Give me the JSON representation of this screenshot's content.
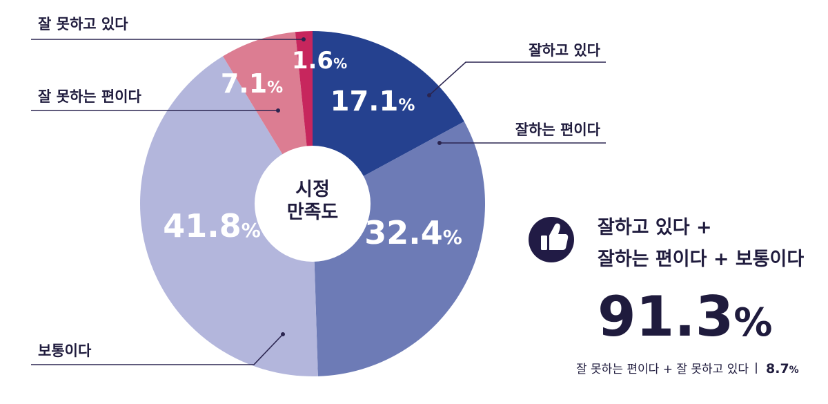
{
  "chart_data": {
    "type": "pie",
    "center_label": [
      "시정",
      "만족도"
    ],
    "series": [
      {
        "label": "잘하고 있다",
        "value": 17.1,
        "display": "17.1",
        "color": "#25418f"
      },
      {
        "label": "잘하는 편이다",
        "value": 32.4,
        "display": "32.4",
        "color": "#6d7bb6"
      },
      {
        "label": "보통이다",
        "value": 41.8,
        "display": "41.8",
        "color": "#b3b6dc"
      },
      {
        "label": "잘 못하는 편이다",
        "value": 7.1,
        "display": "7.1",
        "color": "#dc7d92"
      },
      {
        "label": "잘 못하고 있다",
        "value": 1.6,
        "display": "1.6",
        "color": "#c7265d"
      }
    ],
    "percent_symbol": "%"
  },
  "summary": {
    "line1": "잘하고 있다 +",
    "line2": "잘하는 편이다 + 보통이다",
    "total": "91.3",
    "total_symbol": "%",
    "sub_text": "잘 못하는 편이다 + 잘 못하고 있다",
    "sub_value": "8.7",
    "sub_symbol": "%",
    "icon": "thumbs-up-icon"
  }
}
